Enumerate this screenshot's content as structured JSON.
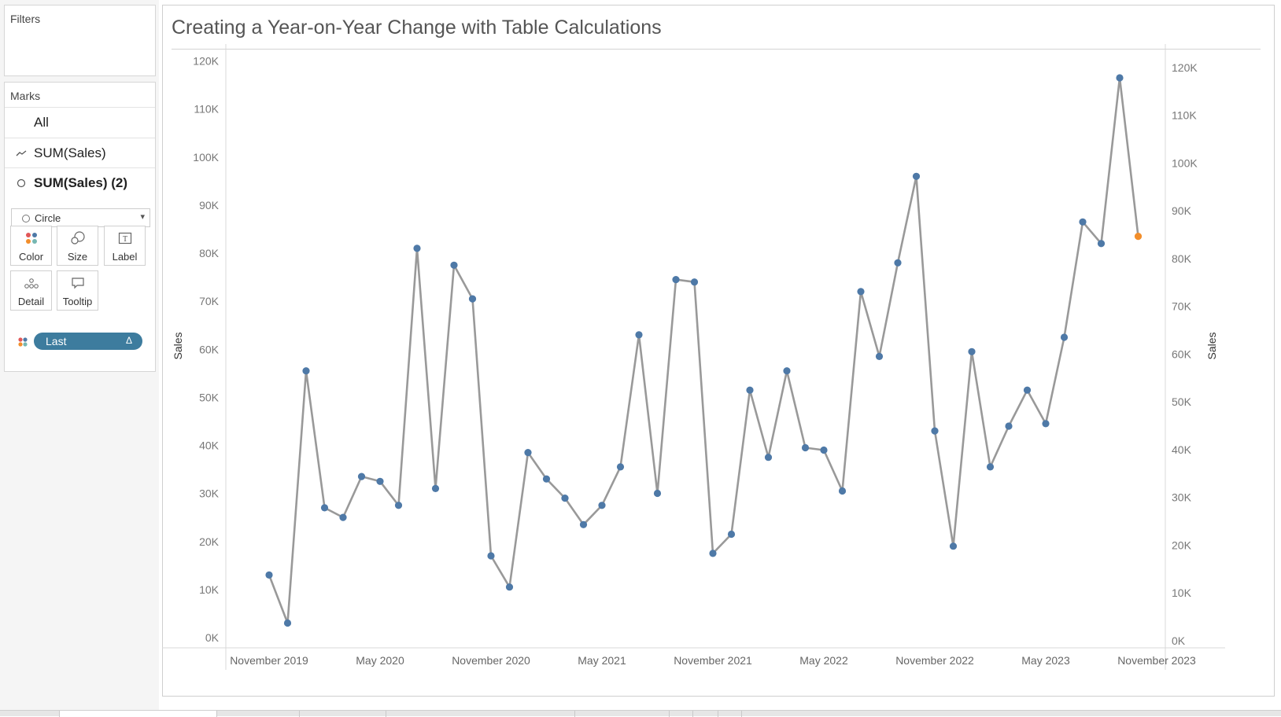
{
  "filters": {
    "title": "Filters"
  },
  "marks": {
    "title": "Marks",
    "rows": [
      {
        "label": "All",
        "icon": "none",
        "bold": false
      },
      {
        "label": "SUM(Sales)",
        "icon": "line-mark-icon",
        "bold": false
      },
      {
        "label": "SUM(Sales) (2)",
        "icon": "circle-mark-icon",
        "bold": true
      }
    ],
    "mark_type": "Circle",
    "buttons": {
      "color": "Color",
      "size": "Size",
      "label": "Label",
      "detail": "Detail",
      "tooltip": "Tooltip"
    },
    "color_pill": {
      "label": "Last",
      "flag": "Δ"
    }
  },
  "sheet": {
    "title": "Creating a Year-on-Year Change with Table Calculations"
  },
  "colors": {
    "line": "#999999",
    "point": "#4e79a7",
    "last_point": "#f28e2b",
    "pill": "#3d7c9e"
  },
  "chart_data": {
    "type": "line",
    "x_labels": [
      "November 2019",
      "May 2020",
      "November 2020",
      "May 2021",
      "November 2021",
      "May 2022",
      "November 2022",
      "May 2023",
      "November 2023"
    ],
    "ylabel": "Sales",
    "ylabel_right": "Sales",
    "y_ticks": [
      "0K",
      "10K",
      "20K",
      "30K",
      "40K",
      "50K",
      "60K",
      "70K",
      "80K",
      "90K",
      "100K",
      "110K",
      "120K"
    ],
    "ylim": [
      0,
      120000
    ],
    "grid": false,
    "series": [
      {
        "values": [
          14500,
          4500,
          57000,
          28500,
          26500,
          35000,
          34000,
          29000,
          82500,
          32500,
          79000,
          72000,
          18500,
          12000,
          40000,
          34500,
          30500,
          25000,
          29000,
          37000,
          64500,
          31500,
          76000,
          75500,
          19000,
          23000,
          53000,
          39000,
          57000,
          41000,
          40500,
          32000,
          73500,
          60000,
          79500,
          97500,
          44500,
          20500,
          61000,
          37000,
          45500,
          53000,
          46000,
          64000,
          88000,
          83500,
          118000,
          85000
        ],
        "highlight_last": true
      }
    ]
  }
}
